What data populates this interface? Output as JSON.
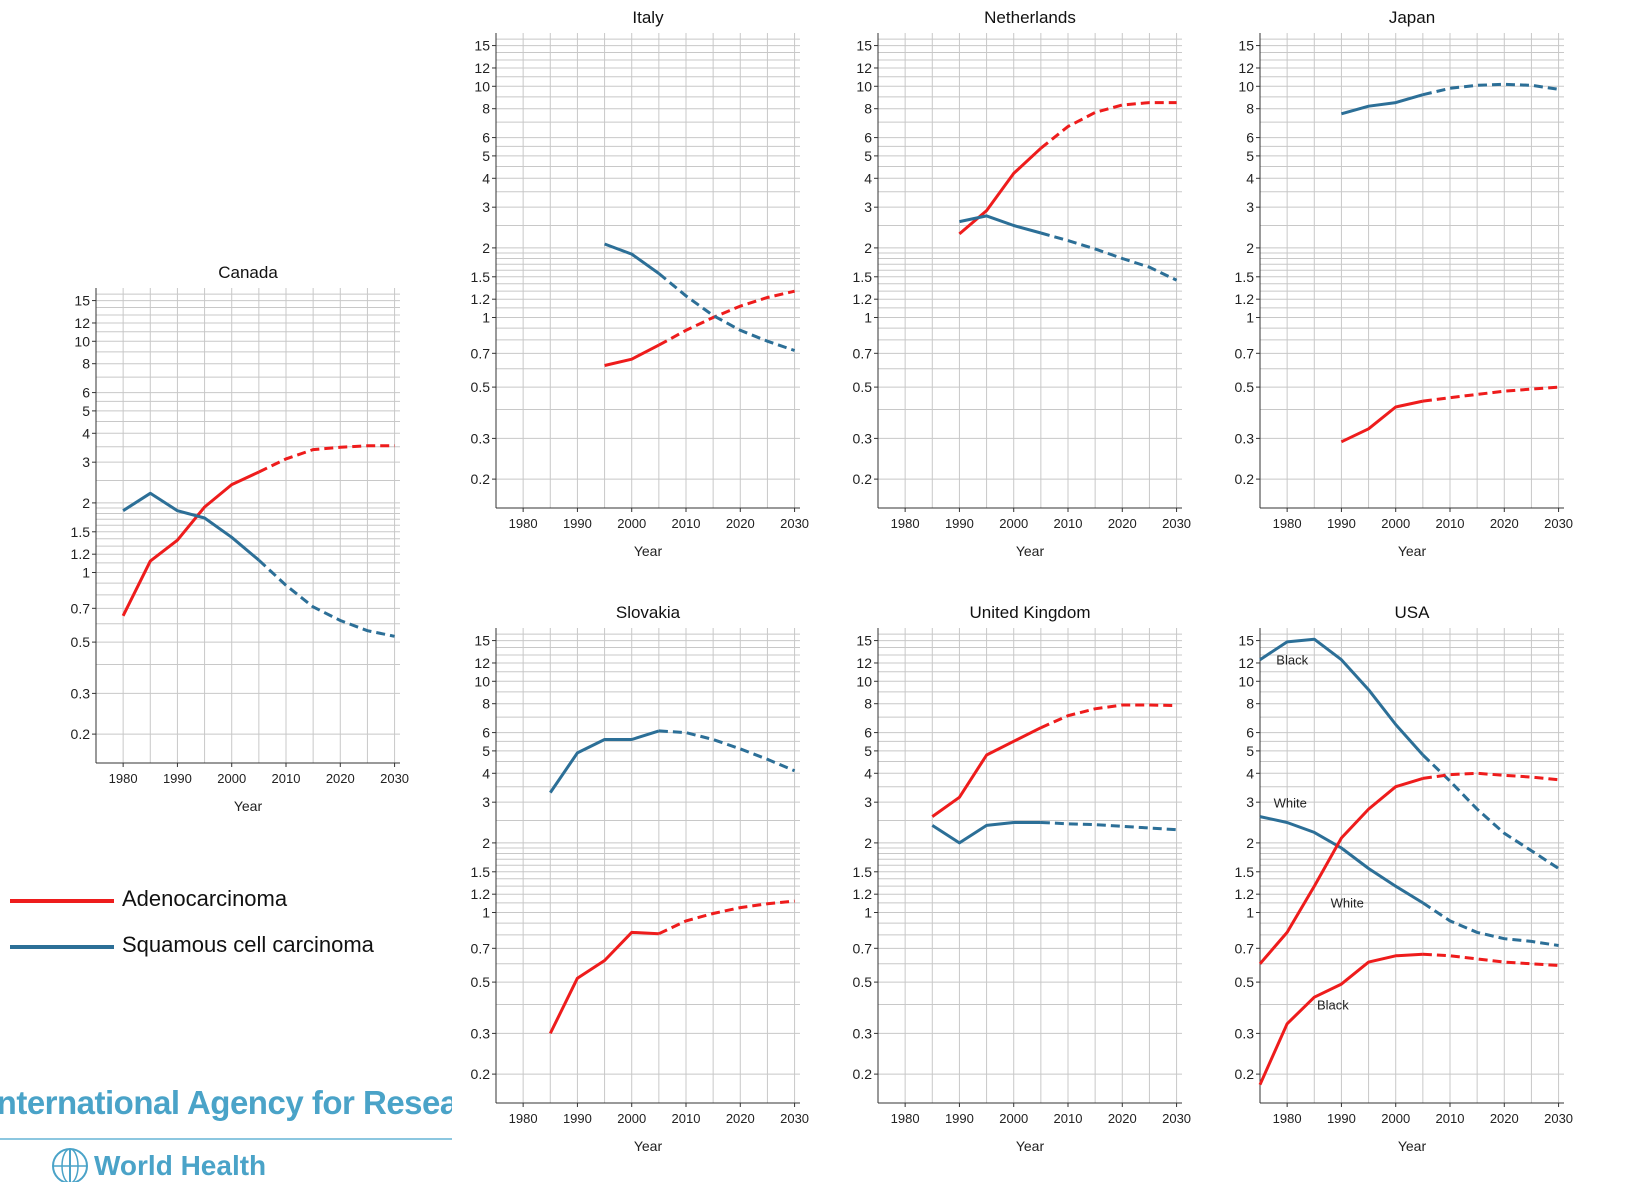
{
  "colors": {
    "adeno": "#ee1c1c",
    "squamous": "#2c6f97",
    "grid": "#c8c8c8",
    "brand": "#4aa3c8"
  },
  "legend": {
    "adeno": "Adenocarcinoma",
    "squamous": "Squamous cell carcinoma"
  },
  "brand": {
    "agency": "International Agency for Research",
    "who": "World Health",
    "logo_icon": "who-emblem-icon"
  },
  "chart_data": [
    {
      "id": "canada",
      "type": "line",
      "title": "Canada",
      "xlabel": "Year",
      "ylabel": "",
      "scale": "log",
      "ylim": [
        0.15,
        17
      ],
      "xlim": [
        1975,
        2031
      ],
      "xticks": [
        1980,
        1990,
        2000,
        2010,
        2020,
        2030
      ],
      "ytick_labels": [
        0.2,
        0.3,
        0.5,
        0.7,
        1,
        1.2,
        1.5,
        2,
        3,
        4,
        5,
        6,
        8,
        10,
        12,
        15
      ],
      "grid": true,
      "series": [
        {
          "name": "Adenocarcinoma",
          "kind": "adeno",
          "projection_start": 2005,
          "x": [
            1980,
            1985,
            1990,
            1995,
            2000,
            2005,
            2010,
            2015,
            2020,
            2025,
            2030
          ],
          "y": [
            0.65,
            1.12,
            1.38,
            1.92,
            2.4,
            2.72,
            3.1,
            3.4,
            3.48,
            3.53,
            3.53
          ]
        },
        {
          "name": "Squamous cell carcinoma",
          "kind": "squamous",
          "projection_start": 2005,
          "x": [
            1980,
            1985,
            1990,
            1995,
            2000,
            2005,
            2010,
            2015,
            2020,
            2025,
            2030
          ],
          "y": [
            1.85,
            2.2,
            1.85,
            1.72,
            1.42,
            1.13,
            0.88,
            0.71,
            0.62,
            0.56,
            0.53
          ]
        }
      ],
      "annotations": []
    },
    {
      "id": "italy",
      "type": "line",
      "title": "Italy",
      "xlabel": "Year",
      "ylabel": "",
      "scale": "log",
      "ylim": [
        0.15,
        17
      ],
      "xlim": [
        1975,
        2031
      ],
      "xticks": [
        1980,
        1990,
        2000,
        2010,
        2020,
        2030
      ],
      "ytick_labels": [
        0.2,
        0.3,
        0.5,
        0.7,
        1,
        1.2,
        1.5,
        2,
        3,
        4,
        5,
        6,
        8,
        10,
        12,
        15
      ],
      "grid": true,
      "series": [
        {
          "name": "Adenocarcinoma",
          "kind": "adeno",
          "projection_start": 2005,
          "x": [
            1995,
            2000,
            2005,
            2010,
            2015,
            2020,
            2025,
            2030
          ],
          "y": [
            0.62,
            0.66,
            0.76,
            0.88,
            1.0,
            1.12,
            1.22,
            1.3
          ]
        },
        {
          "name": "Squamous cell carcinoma",
          "kind": "squamous",
          "projection_start": 2005,
          "x": [
            1995,
            2000,
            2005,
            2010,
            2015,
            2020,
            2025,
            2030
          ],
          "y": [
            2.08,
            1.88,
            1.55,
            1.24,
            1.02,
            0.88,
            0.79,
            0.72
          ]
        }
      ],
      "annotations": []
    },
    {
      "id": "netherlands",
      "type": "line",
      "title": "Netherlands",
      "xlabel": "Year",
      "ylabel": "",
      "scale": "log",
      "ylim": [
        0.15,
        17
      ],
      "xlim": [
        1975,
        2031
      ],
      "xticks": [
        1980,
        1990,
        2000,
        2010,
        2020,
        2030
      ],
      "ytick_labels": [
        0.2,
        0.3,
        0.5,
        0.7,
        1,
        1.2,
        1.5,
        2,
        3,
        4,
        5,
        6,
        8,
        10,
        12,
        15
      ],
      "grid": true,
      "series": [
        {
          "name": "Adenocarcinoma",
          "kind": "adeno",
          "projection_start": 2005,
          "x": [
            1990,
            1995,
            2000,
            2005,
            2010,
            2015,
            2020,
            2025,
            2030
          ],
          "y": [
            2.3,
            2.9,
            4.2,
            5.4,
            6.7,
            7.7,
            8.3,
            8.5,
            8.5
          ]
        },
        {
          "name": "Squamous cell carcinoma",
          "kind": "squamous",
          "projection_start": 2005,
          "x": [
            1990,
            1995,
            2000,
            2005,
            2010,
            2015,
            2020,
            2025,
            2030
          ],
          "y": [
            2.6,
            2.75,
            2.5,
            2.32,
            2.15,
            1.98,
            1.8,
            1.65,
            1.45
          ]
        }
      ],
      "annotations": []
    },
    {
      "id": "japan",
      "type": "line",
      "title": "Japan",
      "xlabel": "Year",
      "ylabel": "",
      "scale": "log",
      "ylim": [
        0.15,
        17
      ],
      "xlim": [
        1975,
        2031
      ],
      "xticks": [
        1980,
        1990,
        2000,
        2010,
        2020,
        2030
      ],
      "ytick_labels": [
        0.2,
        0.3,
        0.5,
        0.7,
        1,
        1.2,
        1.5,
        2,
        3,
        4,
        5,
        6,
        8,
        10,
        12,
        15
      ],
      "grid": true,
      "series": [
        {
          "name": "Adenocarcinoma",
          "kind": "adeno",
          "projection_start": 2005,
          "x": [
            1990,
            1995,
            2000,
            2005,
            2010,
            2015,
            2020,
            2025,
            2030
          ],
          "y": [
            0.29,
            0.33,
            0.41,
            0.435,
            0.45,
            0.465,
            0.48,
            0.49,
            0.5
          ]
        },
        {
          "name": "Squamous cell carcinoma",
          "kind": "squamous",
          "projection_start": 2005,
          "x": [
            1990,
            1995,
            2000,
            2005,
            2010,
            2015,
            2020,
            2025,
            2030
          ],
          "y": [
            7.6,
            8.2,
            8.5,
            9.2,
            9.8,
            10.1,
            10.2,
            10.1,
            9.7
          ]
        }
      ],
      "annotations": []
    },
    {
      "id": "slovakia",
      "type": "line",
      "title": "Slovakia",
      "xlabel": "Year",
      "ylabel": "",
      "scale": "log",
      "ylim": [
        0.15,
        17
      ],
      "xlim": [
        1975,
        2031
      ],
      "xticks": [
        1980,
        1990,
        2000,
        2010,
        2020,
        2030
      ],
      "ytick_labels": [
        0.2,
        0.3,
        0.5,
        0.7,
        1,
        1.2,
        1.5,
        2,
        3,
        4,
        5,
        6,
        8,
        10,
        12,
        15
      ],
      "grid": true,
      "series": [
        {
          "name": "Adenocarcinoma",
          "kind": "adeno",
          "projection_start": 2005,
          "x": [
            1985,
            1990,
            1995,
            2000,
            2005,
            2010,
            2015,
            2020,
            2025,
            2030
          ],
          "y": [
            0.3,
            0.52,
            0.62,
            0.82,
            0.81,
            0.92,
            0.99,
            1.05,
            1.09,
            1.12
          ]
        },
        {
          "name": "Squamous cell carcinoma",
          "kind": "squamous",
          "projection_start": 2005,
          "x": [
            1985,
            1990,
            1995,
            2000,
            2005,
            2010,
            2015,
            2020,
            2025,
            2030
          ],
          "y": [
            3.3,
            4.9,
            5.6,
            5.6,
            6.1,
            6.0,
            5.6,
            5.1,
            4.6,
            4.1
          ]
        }
      ],
      "annotations": []
    },
    {
      "id": "uk",
      "type": "line",
      "title": "United Kingdom",
      "xlabel": "Year",
      "ylabel": "",
      "scale": "log",
      "ylim": [
        0.15,
        17
      ],
      "xlim": [
        1975,
        2031
      ],
      "xticks": [
        1980,
        1990,
        2000,
        2010,
        2020,
        2030
      ],
      "ytick_labels": [
        0.2,
        0.3,
        0.5,
        0.7,
        1,
        1.2,
        1.5,
        2,
        3,
        4,
        5,
        6,
        8,
        10,
        12,
        15
      ],
      "grid": true,
      "series": [
        {
          "name": "Adenocarcinoma",
          "kind": "adeno",
          "projection_start": 2005,
          "x": [
            1985,
            1990,
            1995,
            2000,
            2005,
            2010,
            2015,
            2020,
            2025,
            2030
          ],
          "y": [
            2.6,
            3.15,
            4.8,
            5.5,
            6.3,
            7.1,
            7.6,
            7.9,
            7.9,
            7.85
          ]
        },
        {
          "name": "Squamous cell carcinoma",
          "kind": "squamous",
          "projection_start": 2005,
          "x": [
            1985,
            1990,
            1995,
            2000,
            2005,
            2010,
            2015,
            2020,
            2025,
            2030
          ],
          "y": [
            2.38,
            2.0,
            2.38,
            2.45,
            2.45,
            2.42,
            2.4,
            2.36,
            2.32,
            2.28
          ]
        }
      ],
      "annotations": []
    },
    {
      "id": "usa",
      "type": "line",
      "title": "USA",
      "xlabel": "Year",
      "ylabel": "",
      "scale": "log",
      "ylim": [
        0.15,
        17
      ],
      "xlim": [
        1975,
        2031
      ],
      "xticks": [
        1980,
        1990,
        2000,
        2010,
        2020,
        2030
      ],
      "ytick_labels": [
        0.2,
        0.3,
        0.5,
        0.7,
        1,
        1.2,
        1.5,
        2,
        3,
        4,
        5,
        6,
        8,
        10,
        12,
        15
      ],
      "grid": true,
      "series": [
        {
          "name": "Squamous cell carcinoma",
          "kind": "squamous",
          "projection_start": 2005,
          "x": [
            1975,
            1980,
            1985,
            1990,
            1995,
            2000,
            2005,
            2010,
            2015,
            2020,
            2025,
            2030
          ],
          "y": [
            12.4,
            14.8,
            15.2,
            12.4,
            9.2,
            6.5,
            4.8,
            3.7,
            2.8,
            2.2,
            1.85,
            1.55
          ]
        },
        {
          "name": "Squamous cell carcinoma",
          "kind": "squamous",
          "projection_start": 2005,
          "x": [
            1975,
            1980,
            1985,
            1990,
            1995,
            2000,
            2005,
            2010,
            2015,
            2020,
            2025,
            2030
          ],
          "y": [
            2.6,
            2.45,
            2.22,
            1.9,
            1.55,
            1.3,
            1.1,
            0.92,
            0.82,
            0.77,
            0.75,
            0.72
          ]
        },
        {
          "name": "Adenocarcinoma",
          "kind": "adeno",
          "projection_start": 2005,
          "x": [
            1975,
            1980,
            1985,
            1990,
            1995,
            2000,
            2005,
            2010,
            2015,
            2020,
            2025,
            2030
          ],
          "y": [
            0.6,
            0.82,
            1.3,
            2.1,
            2.8,
            3.5,
            3.8,
            3.95,
            4.0,
            3.92,
            3.85,
            3.75
          ]
        },
        {
          "name": "Adenocarcinoma",
          "kind": "adeno",
          "projection_start": 2005,
          "x": [
            1975,
            1980,
            1985,
            1990,
            1995,
            2000,
            2005,
            2010,
            2015,
            2020,
            2025,
            2030
          ],
          "y": [
            0.18,
            0.33,
            0.43,
            0.49,
            0.61,
            0.65,
            0.66,
            0.65,
            0.63,
            0.61,
            0.6,
            0.59
          ]
        }
      ],
      "annotations": [
        {
          "text": "Black",
          "x": 1978,
          "y": 11.8
        },
        {
          "text": "White",
          "x": 1977.5,
          "y": 2.85
        },
        {
          "text": "White",
          "x": 1988,
          "y": 1.05
        },
        {
          "text": "Black",
          "x": 1985.5,
          "y": 0.38
        }
      ]
    }
  ]
}
